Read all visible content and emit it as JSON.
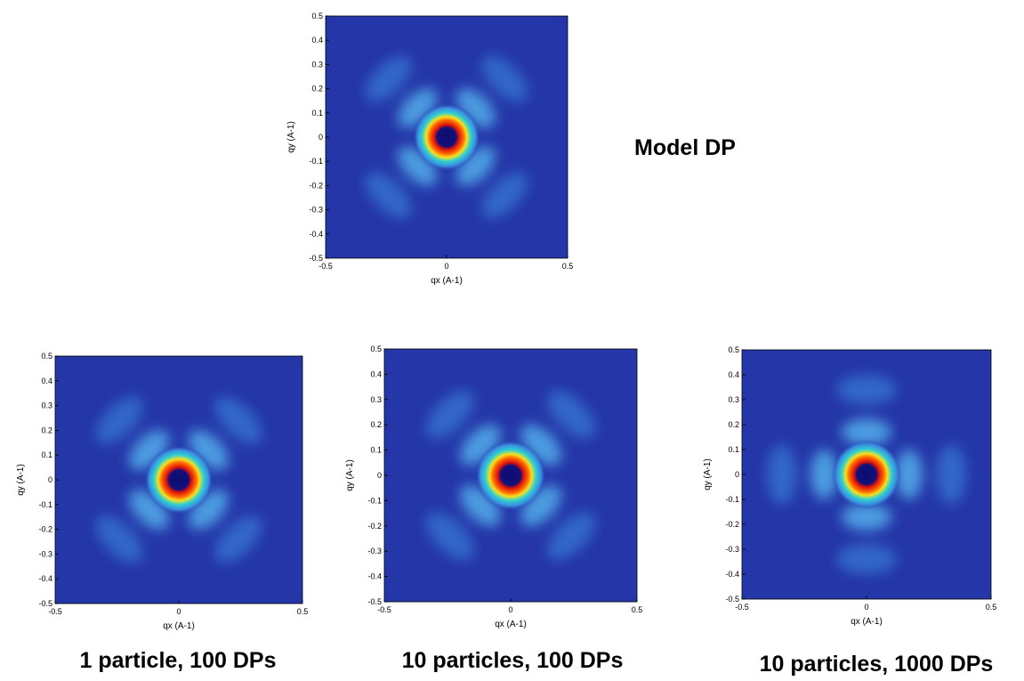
{
  "chart_data": [
    {
      "type": "heatmap",
      "title": "Model DP",
      "xlabel": "qx (A-1)",
      "ylabel": "qy (A-1)",
      "xlim": [
        -0.5,
        0.5
      ],
      "ylim": [
        -0.5,
        0.5
      ],
      "xticks": [
        -0.5,
        0,
        0.5
      ],
      "yticks": [
        -0.5,
        -0.4,
        -0.3,
        -0.2,
        -0.1,
        0,
        0.1,
        0.2,
        0.3,
        0.4,
        0.5
      ]
    },
    {
      "type": "heatmap",
      "title": "1 particle, 100 DPs",
      "xlabel": "qx (A-1)",
      "ylabel": "qy (A-1)",
      "xlim": [
        -0.5,
        0.5
      ],
      "ylim": [
        -0.5,
        0.5
      ],
      "xticks": [
        -0.5,
        0,
        0.5
      ],
      "yticks": [
        -0.5,
        -0.4,
        -0.3,
        -0.2,
        -0.1,
        0,
        0.1,
        0.2,
        0.3,
        0.4,
        0.5
      ]
    },
    {
      "type": "heatmap",
      "title": "10 particles, 100 DPs",
      "xlabel": "qx (A-1)",
      "ylabel": "qy (A-1)",
      "xlim": [
        -0.5,
        0.5
      ],
      "ylim": [
        -0.5,
        0.5
      ],
      "xticks": [
        -0.5,
        0,
        0.5
      ],
      "yticks": [
        -0.5,
        -0.4,
        -0.3,
        -0.2,
        -0.1,
        0,
        0.1,
        0.2,
        0.3,
        0.4,
        0.5
      ]
    },
    {
      "type": "heatmap",
      "title": "10 particles, 1000 DPs",
      "xlabel": "qx (A-1)",
      "ylabel": "qy (A-1)",
      "xlim": [
        -0.5,
        0.5
      ],
      "ylim": [
        -0.5,
        0.5
      ],
      "xticks": [
        -0.5,
        0,
        0.5
      ],
      "yticks": [
        -0.5,
        -0.4,
        -0.3,
        -0.2,
        -0.1,
        0,
        0.1,
        0.2,
        0.3,
        0.4,
        0.5
      ]
    }
  ]
}
